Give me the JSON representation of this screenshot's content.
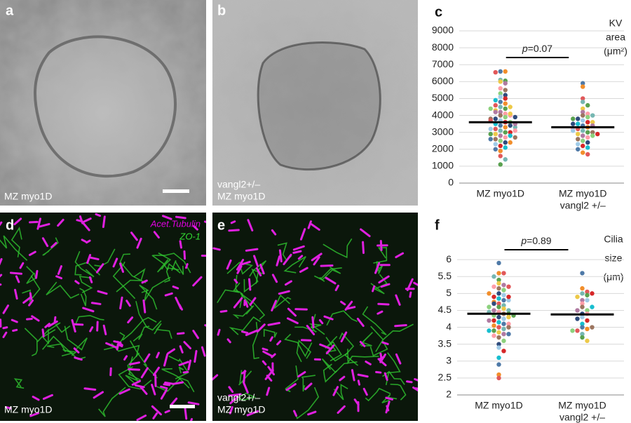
{
  "panels": [
    {
      "letter": "a",
      "caption": [
        "MZ myo1D"
      ]
    },
    {
      "letter": "b",
      "caption": [
        "vangl2+/–",
        "MZ myo1D"
      ]
    },
    {
      "letter": "d",
      "caption": [
        "MZ myo1D"
      ],
      "stains": [
        "Acet.Tubulin",
        "ZO-1"
      ]
    },
    {
      "letter": "e",
      "caption": [
        "vangl2+/–",
        "MZ myo1D"
      ]
    }
  ],
  "chart_data": [
    {
      "type": "dot",
      "letter": "c",
      "title": [
        "KV",
        "area",
        "(μm²)"
      ],
      "categories": [
        [
          "MZ myo1D"
        ],
        [
          "MZ myo1D",
          "vangl2 +/–"
        ]
      ],
      "groups": [
        {
          "values": [
            6600,
            6600,
            6550,
            6100,
            6050,
            6000,
            5900,
            5600,
            5500,
            5300,
            5200,
            5100,
            5000,
            4900,
            4800,
            4700,
            4600,
            4500,
            4400,
            4300,
            4200,
            4100,
            4000,
            3900,
            3800,
            3700,
            3600,
            3500,
            3400,
            3300,
            3200,
            3100,
            3000,
            2900,
            2800,
            2700,
            2600,
            2500,
            2400,
            2300,
            2200,
            2100,
            2000,
            1900,
            1600,
            1400,
            1100,
            4500,
            4200,
            4000,
            3800,
            3600,
            3400,
            3200,
            3000,
            2800,
            2600,
            2400,
            3700,
            3300,
            2900,
            4100,
            3500,
            3100,
            2700,
            4400,
            3900
          ],
          "mean": 3600
        },
        {
          "values": [
            5900,
            5700,
            5000,
            4800,
            4600,
            4400,
            4200,
            4100,
            4000,
            3900,
            3800,
            3700,
            3600,
            3500,
            3400,
            3300,
            3200,
            3100,
            3000,
            2900,
            2800,
            2700,
            2600,
            2500,
            2400,
            2300,
            2200,
            2100,
            2000,
            1800,
            1700,
            4000,
            3800,
            3600,
            3400,
            3200,
            3000,
            2800,
            3500,
            3100,
            2900
          ],
          "mean": 3300
        }
      ],
      "annotation": {
        "symbol": "p",
        "text": "=0.07"
      },
      "ylim": [
        0,
        9000
      ],
      "yticks": [
        0,
        1000,
        2000,
        3000,
        4000,
        5000,
        6000,
        7000,
        8000,
        9000
      ],
      "grid": true,
      "palette": [
        "#4e79a7",
        "#f28e2b",
        "#e15759",
        "#76b7b2",
        "#59a14f",
        "#edc948",
        "#b07aa1",
        "#ff9da7",
        "#9c755f",
        "#8cd17d",
        "#2f4b7c",
        "#a0cbe8",
        "#d62728",
        "#17becf"
      ]
    },
    {
      "type": "dot",
      "letter": "f",
      "title": [
        "Cilia",
        "size",
        "(μm)"
      ],
      "categories": [
        [
          "MZ myo1D"
        ],
        [
          "MZ myo1D",
          "vangl2 +/–"
        ]
      ],
      "groups": [
        {
          "values": [
            5.9,
            5.6,
            5.6,
            5.5,
            5.4,
            5.3,
            5.25,
            5.2,
            5.15,
            5.1,
            5.0,
            4.95,
            4.9,
            4.85,
            4.8,
            4.75,
            4.7,
            4.65,
            4.6,
            4.55,
            4.5,
            4.45,
            4.4,
            4.35,
            4.3,
            4.25,
            4.2,
            4.15,
            4.1,
            4.05,
            4.0,
            3.95,
            3.9,
            3.85,
            3.8,
            3.75,
            3.7,
            3.6,
            3.5,
            3.4,
            3.3,
            3.1,
            2.9,
            2.6,
            2.5,
            4.5,
            4.4,
            4.3,
            4.2,
            4.1,
            4.0,
            4.6,
            4.7,
            4.8,
            4.9,
            3.9,
            3.8,
            5.0,
            5.2,
            4.45,
            4.35
          ],
          "mean": 4.4
        },
        {
          "values": [
            5.6,
            5.15,
            5.05,
            5.0,
            4.95,
            4.9,
            4.8,
            4.7,
            4.6,
            4.5,
            4.4,
            4.3,
            4.2,
            4.1,
            4.0,
            3.95,
            3.9,
            3.8,
            3.7,
            3.6,
            4.5,
            4.4,
            4.0,
            3.9,
            4.25,
            4.8,
            5.0,
            4.6
          ],
          "mean": 4.38
        }
      ],
      "annotation": {
        "symbol": "p",
        "text": "=0.89"
      },
      "ylim": [
        2,
        6.5
      ],
      "yticks": [
        2,
        2.5,
        3,
        3.5,
        4,
        4.5,
        5,
        5.5,
        6
      ],
      "grid": true,
      "palette": [
        "#4e79a7",
        "#f28e2b",
        "#e15759",
        "#76b7b2",
        "#59a14f",
        "#edc948",
        "#b07aa1",
        "#ff9da7",
        "#9c755f",
        "#8cd17d",
        "#2f4b7c",
        "#a0cbe8",
        "#d62728",
        "#17becf"
      ]
    }
  ]
}
